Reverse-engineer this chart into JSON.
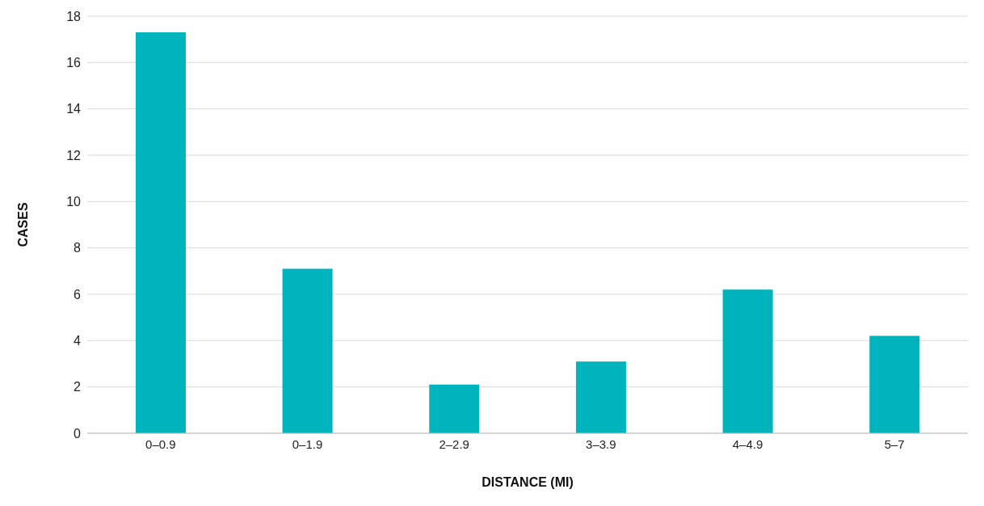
{
  "chart_data": {
    "type": "bar",
    "xlabel": "DISTANCE (MI)",
    "ylabel": "CASES",
    "categories": [
      "0–0.9",
      "0–1.9",
      "2–2.9",
      "3–3.9",
      "4–4.9",
      "5–7"
    ],
    "values": [
      17.3,
      7.1,
      2.1,
      3.1,
      6.2,
      4.2
    ],
    "color": "#00b4be",
    "ylim": [
      0,
      18
    ],
    "yticks": [
      0,
      2,
      4,
      6,
      8,
      10,
      12,
      14,
      16,
      18
    ],
    "grid": "y"
  }
}
